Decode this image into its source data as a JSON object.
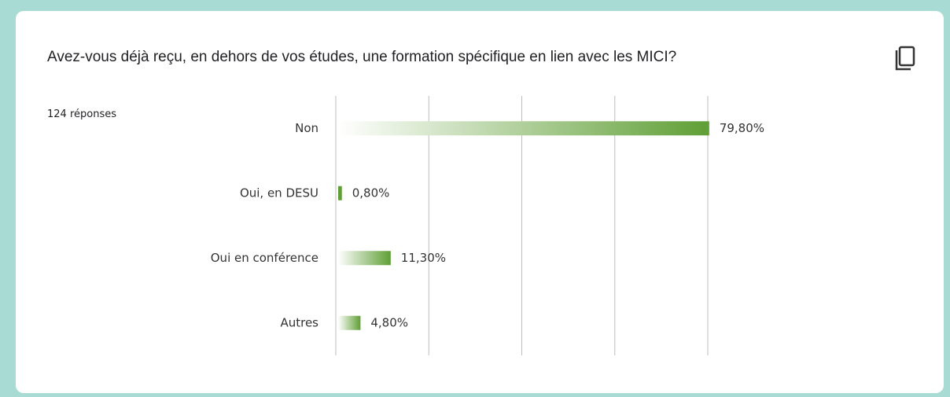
{
  "chart_data": {
    "type": "barh",
    "title": "Avez-vous déjà reçu, en dehors de vos études, une formation spécifique en lien avec les MICI?",
    "subtitle": "124 réponses",
    "categories": [
      "Non",
      "Oui, en DESU",
      "Oui en conférence",
      "Autres"
    ],
    "values": [
      79.8,
      0.8,
      11.3,
      4.8
    ],
    "value_labels": [
      "79,80%",
      "0,80%",
      "11,30%",
      "4,80%"
    ],
    "color": "#5f9f35",
    "xlim": [
      0,
      80
    ],
    "xticks": [
      0,
      20,
      40,
      60,
      80
    ],
    "grid": true
  }
}
